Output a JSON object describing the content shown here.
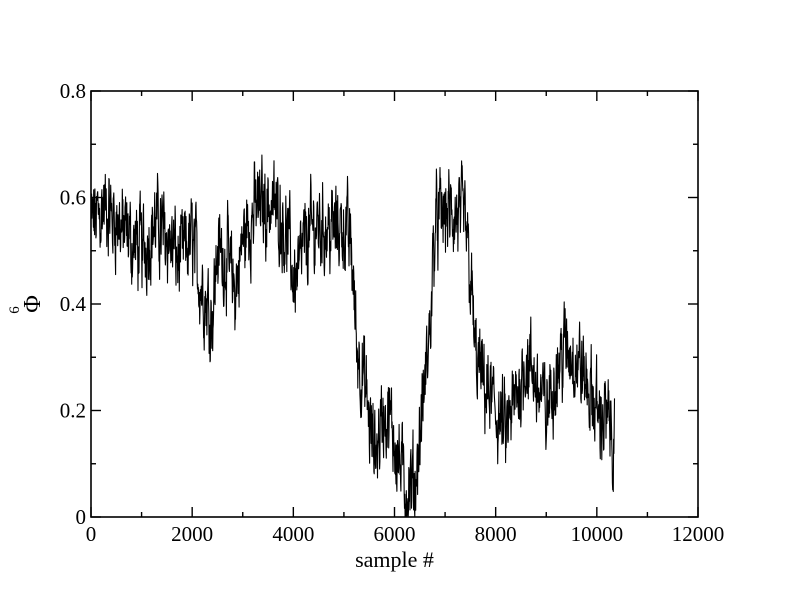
{
  "chart_data": {
    "type": "line",
    "title": "",
    "xlabel": "sample #",
    "ylabel": "Φ",
    "ylabel_subscript": "6",
    "xlim": [
      0,
      12000
    ],
    "ylim": [
      0,
      0.8
    ],
    "xticks": [
      0,
      2000,
      4000,
      6000,
      8000,
      10000,
      12000
    ],
    "xtick_labels": [
      "0",
      "2000",
      "4000",
      "6000",
      "8000",
      "10000",
      "12000"
    ],
    "yticks": [
      0,
      0.2,
      0.4,
      0.6,
      0.8
    ],
    "ytick_labels": [
      "0",
      "0.2",
      "0.4",
      "0.6",
      "0.8"
    ],
    "grid": false,
    "line_color": "#000000",
    "series": [
      {
        "x": [
          0,
          250,
          500,
          750,
          1000,
          1250,
          1500,
          1750,
          2000,
          2150,
          2300,
          2400,
          2500,
          2700,
          2850,
          3000,
          3250,
          3500,
          3750,
          3900,
          4000,
          4100,
          4250,
          4500,
          4750,
          5000,
          5150,
          5250,
          5400,
          5500,
          5600,
          5800,
          6000,
          6100,
          6250,
          6400,
          6500,
          6600,
          6700,
          6800,
          7000,
          7200,
          7400,
          7500,
          7600,
          7750,
          8000,
          8200,
          8400,
          8600,
          8800,
          9000,
          9200,
          9400,
          9600,
          9800,
          10000,
          10200,
          10350
        ],
        "y": [
          0.55,
          0.58,
          0.56,
          0.52,
          0.5,
          0.55,
          0.53,
          0.48,
          0.52,
          0.45,
          0.4,
          0.38,
          0.5,
          0.48,
          0.42,
          0.52,
          0.58,
          0.59,
          0.57,
          0.52,
          0.45,
          0.46,
          0.52,
          0.55,
          0.54,
          0.55,
          0.5,
          0.33,
          0.25,
          0.18,
          0.12,
          0.2,
          0.15,
          0.1,
          0.05,
          0.06,
          0.15,
          0.25,
          0.35,
          0.55,
          0.57,
          0.56,
          0.55,
          0.45,
          0.3,
          0.25,
          0.2,
          0.15,
          0.22,
          0.3,
          0.25,
          0.2,
          0.28,
          0.32,
          0.3,
          0.25,
          0.2,
          0.18,
          0.15
        ]
      }
    ]
  }
}
